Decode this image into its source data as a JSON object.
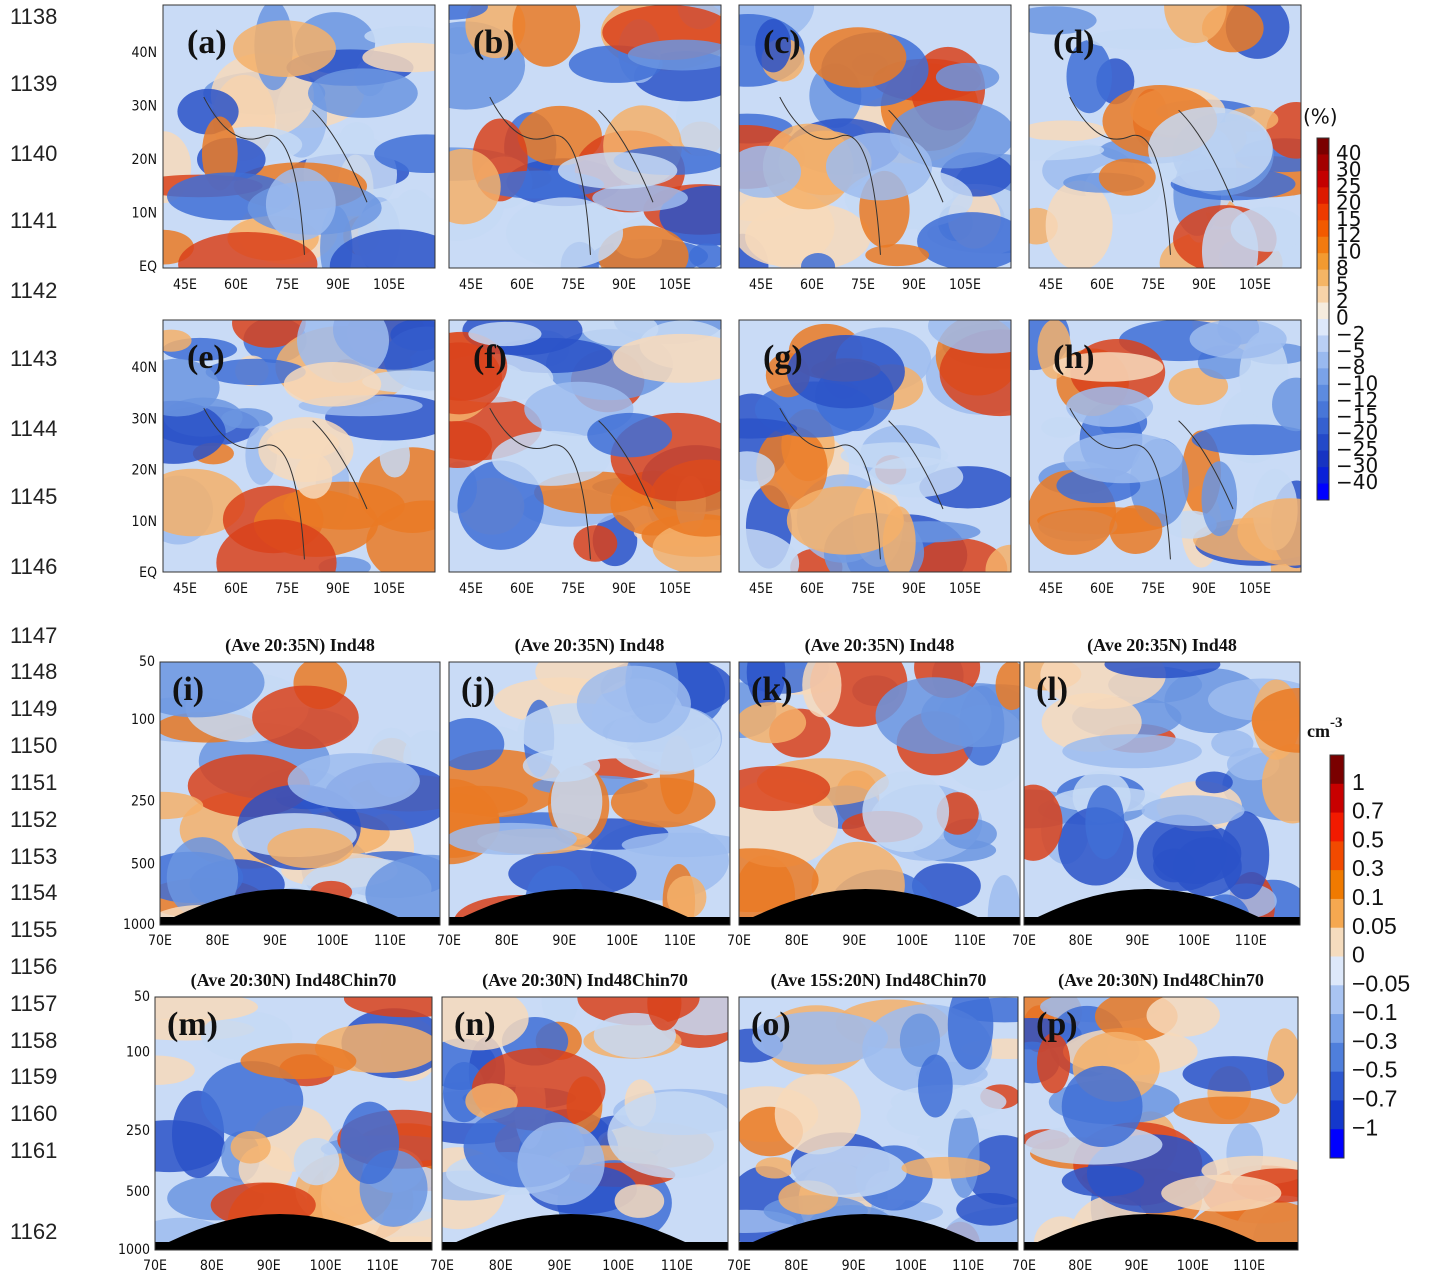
{
  "line_numbers": [
    "1138",
    "1139",
    "1140",
    "1141",
    "1142",
    "1143",
    "1144",
    "1145",
    "1146",
    "1147",
    "1148",
    "1149",
    "1150",
    "1151",
    "1152",
    "1153",
    "1154",
    "1155",
    "1156",
    "1157",
    "1158",
    "1159",
    "1160",
    "1161",
    "1162"
  ],
  "map_panels": {
    "labels": [
      "(a)",
      "(b)",
      "(c)",
      "(d)",
      "(e)",
      "(f)",
      "(g)",
      "(h)"
    ],
    "x_ticks": [
      "45E",
      "60E",
      "75E",
      "90E",
      "105E"
    ],
    "y_ticks": [
      "40N",
      "30N",
      "20N",
      "10N",
      "EQ"
    ]
  },
  "map_colorbar": {
    "unit": "(%)",
    "labels": [
      "40",
      "30",
      "25",
      "20",
      "15",
      "12",
      "10",
      "8",
      "5",
      "2",
      "0",
      "−2",
      "−5",
      "−8",
      "−10",
      "−12",
      "−15",
      "−20",
      "−25",
      "−30",
      "−40"
    ]
  },
  "section_panels": {
    "labels": [
      "(i)",
      "(j)",
      "(k)",
      "(l)",
      "(m)",
      "(n)",
      "(o)",
      "(p)"
    ],
    "titles": [
      "(Ave 20:35N) Ind48",
      "(Ave 20:35N) Ind48",
      "(Ave 20:35N) Ind48",
      "(Ave 20:35N) Ind48",
      "(Ave 20:30N) Ind48Chin70",
      "(Ave 20:30N) Ind48Chin70",
      "(Ave 15S:20N) Ind48Chin70",
      "(Ave 20:30N) Ind48Chin70"
    ],
    "x_ticks": [
      "70E",
      "80E",
      "90E",
      "100E",
      "110E"
    ],
    "y_ticks": [
      "50",
      "100",
      "250",
      "500",
      "1000"
    ]
  },
  "section_colorbar": {
    "unit": "cm",
    "unit_sup": "-3",
    "labels": [
      "1",
      "0.7",
      "0.5",
      "0.3",
      "0.1",
      "0.05",
      "0",
      "−0.05",
      "−0.1",
      "−0.3",
      "−0.5",
      "−0.7",
      "−1"
    ]
  }
}
